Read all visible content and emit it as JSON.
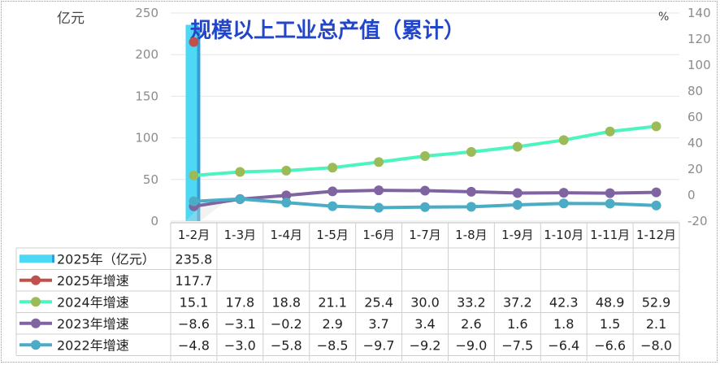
{
  "chart_data": {
    "type": "bar",
    "title": "规模以上工业总产值（累计）",
    "ylabel_left": "亿元",
    "ylabel_right": "%",
    "ylim_left": [
      0,
      250
    ],
    "yticks_left": [
      "0",
      "50",
      "100",
      "150",
      "200",
      "250"
    ],
    "ylim_right": [
      -20,
      140
    ],
    "yticks_right": [
      "-20",
      "0",
      "20",
      "40",
      "60",
      "80",
      "100",
      "120",
      "140"
    ],
    "categories": [
      "1-2月",
      "1-3月",
      "1-4月",
      "1-5月",
      "1-6月",
      "1-7月",
      "1-8月",
      "1-9月",
      "1-10月",
      "1-11月",
      "1-12月"
    ],
    "bar_series": {
      "name": "2025年（亿元）",
      "values": [
        235.8,
        null,
        null,
        null,
        null,
        null,
        null,
        null,
        null,
        null,
        null
      ],
      "labels": [
        "235.8",
        "",
        "",
        "",
        "",
        "",
        "",
        "",
        "",
        "",
        ""
      ],
      "color": "#4dd8f5"
    },
    "line_series": [
      {
        "name": "2025年增速",
        "color": "#c0504d",
        "values": [
          117.7,
          null,
          null,
          null,
          null,
          null,
          null,
          null,
          null,
          null,
          null
        ],
        "labels": [
          "117.7",
          "",
          "",
          "",
          "",
          "",
          "",
          "",
          "",
          "",
          ""
        ]
      },
      {
        "name": "2024年增速",
        "color": "#4cf5c0",
        "marker": "#9bbb59",
        "values": [
          15.1,
          17.8,
          18.8,
          21.1,
          25.4,
          30.0,
          33.2,
          37.2,
          42.3,
          48.9,
          52.9
        ],
        "labels": [
          "15.1",
          "17.8",
          "18.8",
          "21.1",
          "25.4",
          "30.0",
          "33.2",
          "37.2",
          "42.3",
          "48.9",
          "52.9"
        ]
      },
      {
        "name": "2023年增速",
        "color": "#8064a2",
        "values": [
          -8.6,
          -3.1,
          -0.2,
          2.9,
          3.7,
          3.4,
          2.6,
          1.6,
          1.8,
          1.5,
          2.1
        ],
        "labels": [
          "-8.6",
          "-3.1",
          "-0.2",
          "2.9",
          "3.7",
          "3.4",
          "2.6",
          "1.6",
          "1.8",
          "1.5",
          "2.1"
        ]
      },
      {
        "name": "2022年增速",
        "color": "#4bacc6",
        "values": [
          -4.8,
          -3.0,
          -5.8,
          -8.5,
          -9.7,
          -9.2,
          -9.0,
          -7.5,
          -6.4,
          -6.6,
          -8.0
        ],
        "labels": [
          "-4.8",
          "-3.0",
          "-5.8",
          "-8.5",
          "-9.7",
          "-9.2",
          "-9.0",
          "-7.5",
          "-6.4",
          "-6.6",
          "-8.0"
        ]
      }
    ]
  }
}
